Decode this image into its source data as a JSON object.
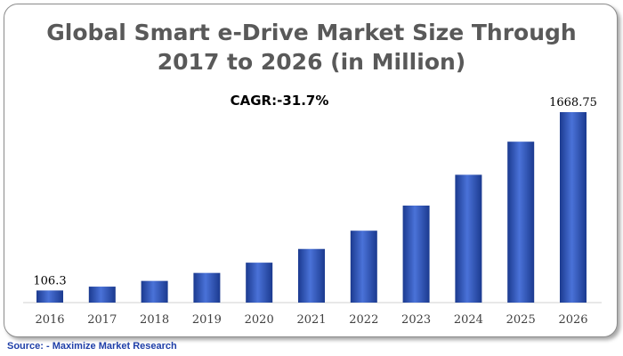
{
  "title_line1": "Global Smart e-Drive Market Size Through",
  "title_line2": "2017 to 2026 (in Million)",
  "annotation": "CAGR:-31.7%",
  "source": "Source: - Maximize Market Research",
  "colors": {
    "bar": "#3a5fc8",
    "bar_dark": "#1b3a8f",
    "text": "#595959",
    "axis": "#d0d0d0"
  },
  "chart_data": {
    "type": "bar",
    "title": "Global Smart e-Drive Market Size Through 2017 to 2026 (in Million)",
    "xlabel": "",
    "ylabel": "",
    "categories": [
      "2016",
      "2017",
      "2018",
      "2019",
      "2020",
      "2021",
      "2022",
      "2023",
      "2024",
      "2025",
      "2026"
    ],
    "values": [
      106.3,
      140,
      190,
      260,
      350,
      470,
      630,
      850,
      1120,
      1410,
      1668.75
    ],
    "data_labels": {
      "0": "106.3",
      "10": "1668.75"
    },
    "ylim": [
      0,
      1668.75
    ],
    "grid": false,
    "legend": "none"
  }
}
